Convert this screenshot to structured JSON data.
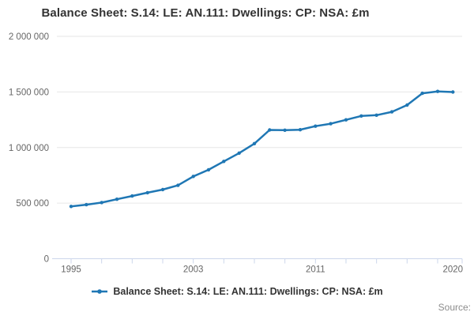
{
  "title": "Balance Sheet: S.14: LE: AN.111: Dwellings: CP: NSA: £m",
  "source_label": "Source:",
  "legend": {
    "marker": "line-dot-icon",
    "label": "Balance Sheet: S.14: LE: AN.111: Dwellings: CP: NSA: £m"
  },
  "colors": {
    "line": "#1f77b4",
    "grid": "#e6e6e6",
    "axis_line": "#ccd6eb",
    "axis_text": "#666666",
    "title_text": "#333333",
    "muted_2": "#8c8c8c"
  },
  "chart_data": {
    "type": "line",
    "title": "Balance Sheet: S.14: LE: AN.111: Dwellings: CP: NSA: £m",
    "xlabel": "",
    "ylabel": "",
    "grid": true,
    "legend_position": "bottom",
    "ylim": [
      0,
      2000000
    ],
    "x": [
      1995,
      1996,
      1997,
      1998,
      1999,
      2000,
      2001,
      2002,
      2003,
      2004,
      2005,
      2006,
      2007,
      2008,
      2009,
      2010,
      2011,
      2012,
      2013,
      2014,
      2015,
      2016,
      2017,
      2018,
      2019,
      2020
    ],
    "series": [
      {
        "name": "Balance Sheet: S.14: LE: AN.111: Dwellings: CP: NSA: £m",
        "values": [
          470000,
          486000,
          505000,
          535000,
          564000,
          594000,
          622000,
          660000,
          740000,
          800000,
          875000,
          950000,
          1035000,
          1158000,
          1156000,
          1160000,
          1192000,
          1214000,
          1249000,
          1284000,
          1291000,
          1321000,
          1382000,
          1488000,
          1505000,
          1499000
        ]
      }
    ],
    "yticks": [
      {
        "value": 0,
        "label": "0"
      },
      {
        "value": 500000,
        "label": "500 000"
      },
      {
        "value": 1000000,
        "label": "1 000 000"
      },
      {
        "value": 1500000,
        "label": "1 500 000"
      },
      {
        "value": 2000000,
        "label": "2 000 000"
      }
    ],
    "x_axis": {
      "tick_years": [
        1995,
        1997,
        1999,
        2001,
        2003,
        2005,
        2007,
        2009,
        2011,
        2013,
        2015,
        2017,
        2019
      ],
      "end_tick": true,
      "labels": [
        {
          "text": "1995",
          "year": 1995
        },
        {
          "text": "2003",
          "year": 2003
        },
        {
          "text": "2011",
          "year": 2011
        },
        {
          "text": "2020",
          "year": 2020
        }
      ]
    }
  }
}
